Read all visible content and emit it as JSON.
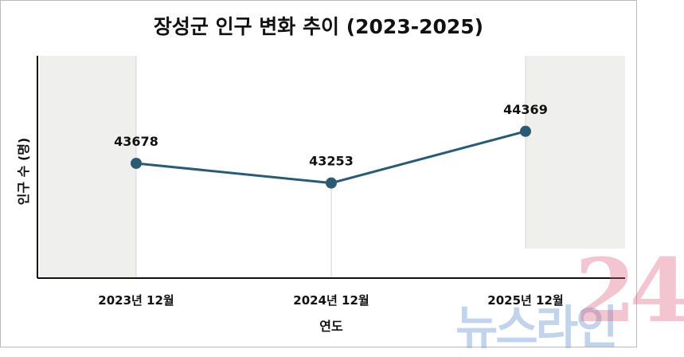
{
  "chart_data": {
    "type": "line",
    "title": "장성군 인구 변화 추이 (2023-2025)",
    "xlabel": "연도",
    "ylabel": "인구 수 (명)",
    "categories": [
      "2023년 12월",
      "2024년 12월",
      "2025년 12월"
    ],
    "series": [
      {
        "name": "인구 수",
        "values": [
          43678,
          43253,
          44369
        ]
      }
    ],
    "data_labels": [
      "43678",
      "43253",
      "44369"
    ],
    "ylim": [
      41200,
      46000
    ],
    "grid": false,
    "legend": "none",
    "colors": {
      "line": "#2a5b73",
      "band": "#efefed"
    }
  },
  "watermark": {
    "text_a": "뉴스라인",
    "text_b": "24"
  }
}
